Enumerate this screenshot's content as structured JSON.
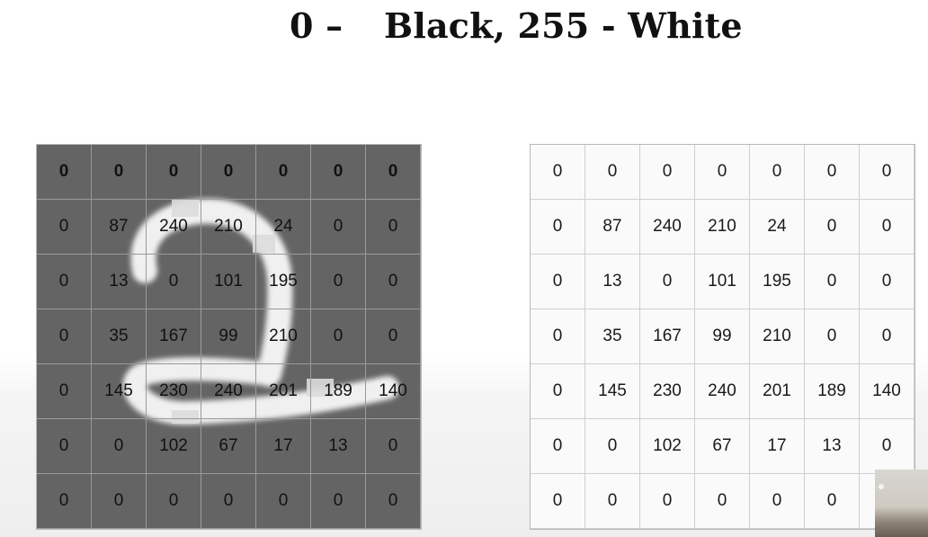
{
  "title": {
    "part1": "0 –",
    "part2": "Black, 255 - White"
  },
  "pixel_matrix": [
    [
      0,
      0,
      0,
      0,
      0,
      0,
      0
    ],
    [
      0,
      87,
      240,
      210,
      24,
      0,
      0
    ],
    [
      0,
      13,
      0,
      101,
      195,
      0,
      0
    ],
    [
      0,
      35,
      167,
      99,
      210,
      0,
      0
    ],
    [
      0,
      145,
      230,
      240,
      201,
      189,
      140
    ],
    [
      0,
      0,
      102,
      67,
      17,
      13,
      0
    ],
    [
      0,
      0,
      0,
      0,
      0,
      0,
      0
    ]
  ],
  "colors": {
    "image_background": "#646464",
    "digit_stroke": "#f0f0f0",
    "table_background": "#fafafa"
  }
}
